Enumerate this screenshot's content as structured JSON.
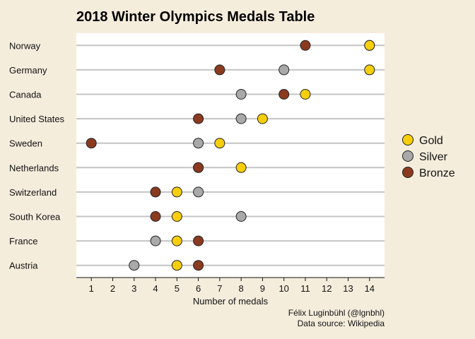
{
  "chart_data": {
    "type": "scatter",
    "title": "2018 Winter Olympics Medals Table",
    "xlabel": "Number of medals",
    "ylabel": "",
    "xlim": [
      0.3,
      14.7
    ],
    "xticks": [
      1,
      2,
      3,
      4,
      5,
      6,
      7,
      8,
      9,
      10,
      11,
      12,
      13,
      14
    ],
    "grid": "horizontal lines per country",
    "legend_position": "right",
    "categories": [
      "Norway",
      "Germany",
      "Canada",
      "United States",
      "Sweden",
      "Netherlands",
      "Switzerland",
      "South Korea",
      "France",
      "Austria"
    ],
    "series": [
      {
        "name": "Gold",
        "color": "#f7ce0b",
        "values": [
          14,
          14,
          11,
          9,
          7,
          8,
          5,
          5,
          5,
          5
        ]
      },
      {
        "name": "Silver",
        "color": "#a9a9a9",
        "values": [
          14,
          10,
          8,
          8,
          6,
          6,
          6,
          8,
          4,
          3
        ]
      },
      {
        "name": "Bronze",
        "color": "#8b3a1f",
        "values": [
          11,
          7,
          10,
          6,
          1,
          6,
          4,
          4,
          6,
          6
        ]
      }
    ],
    "caption_lines": [
      "Félix Luginbühl (@lgnbhl)",
      "Data source: Wikipedia"
    ]
  }
}
